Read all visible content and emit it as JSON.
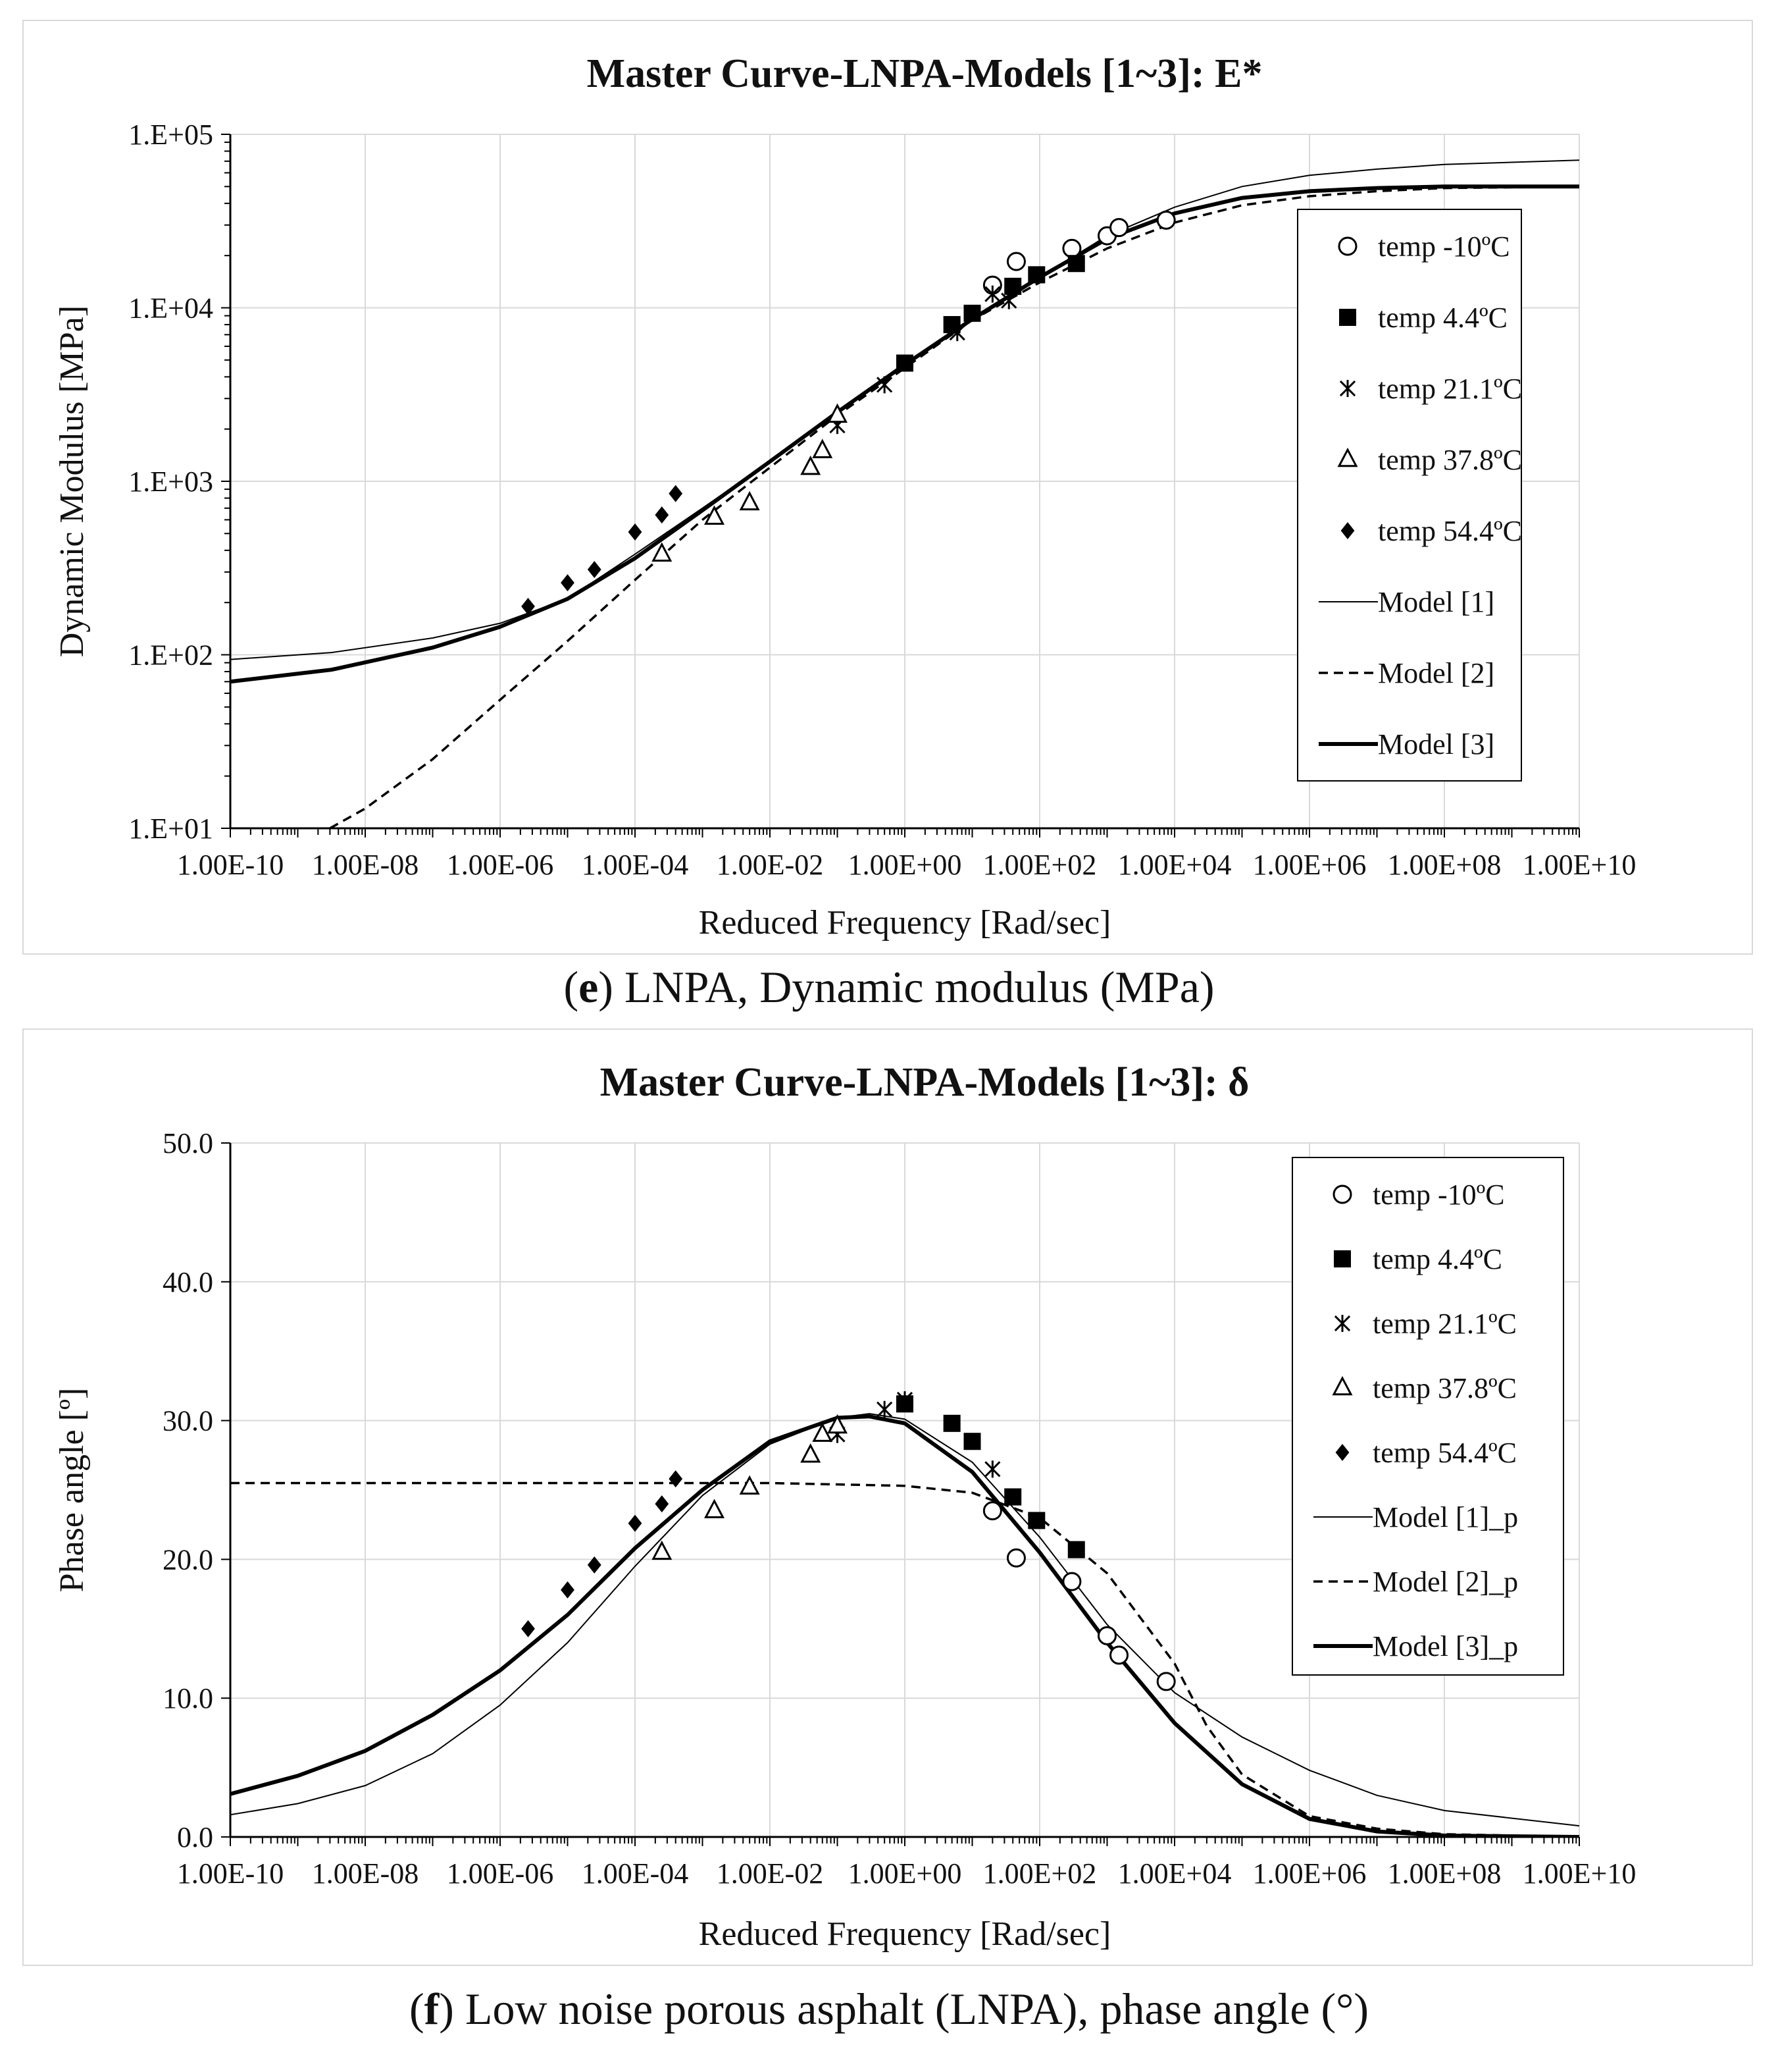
{
  "chart_data": [
    {
      "type": "scatter",
      "title": "Master Curve-LNPA-Models [1~3]: E*",
      "xlabel": "Reduced Frequency [Rad/sec]",
      "ylabel": "Dynamic Modulus [MPa]",
      "xscale": "log",
      "yscale": "log",
      "xlim": [
        1e-10,
        10000000000.0
      ],
      "ylim": [
        10,
        100000
      ],
      "x_ticks": [
        1e-10,
        1e-08,
        1e-06,
        0.0001,
        0.01,
        1,
        100.0,
        10000.0,
        1000000.0,
        100000000.0,
        10000000000.0
      ],
      "x_tick_labels": [
        "1.00E-10",
        "1.00E-08",
        "1.00E-06",
        "1.00E-04",
        "1.00E-02",
        "1.00E+00",
        "1.00E+02",
        "1.00E+04",
        "1.00E+06",
        "1.00E+08",
        "1.00E+10"
      ],
      "y_ticks": [
        10,
        100,
        1000,
        10000,
        100000
      ],
      "y_tick_labels": [
        "1.E+01",
        "1.E+02",
        "1.E+03",
        "1.E+04",
        "1.E+05"
      ],
      "grid": true,
      "legend_position": "right",
      "series": [
        {
          "name": "temp -10ºC",
          "marker": "circle-open",
          "x": [
            20,
            45,
            300,
            1000,
            1500,
            7500
          ],
          "y": [
            13500,
            18500,
            22000,
            26000,
            29000,
            32000
          ]
        },
        {
          "name": "temp 4.4ºC",
          "marker": "square-filled",
          "x": [
            1,
            5,
            10,
            40,
            90,
            350
          ],
          "y": [
            4800,
            8000,
            9300,
            13300,
            15500,
            18000
          ]
        },
        {
          "name": "temp 21.1ºC",
          "marker": "asterisk",
          "x": [
            0.1,
            0.5,
            6,
            20,
            35
          ],
          "y": [
            2100,
            3600,
            7200,
            12000,
            11000
          ]
        },
        {
          "name": "temp 37.8ºC",
          "marker": "triangle-open",
          "x": [
            0.00025,
            0.0015,
            0.005,
            0.04,
            0.06,
            0.1
          ],
          "y": [
            380,
            620,
            750,
            1200,
            1500,
            2400
          ]
        },
        {
          "name": "temp 54.4ºC",
          "marker": "diamond-filled",
          "x": [
            2.6e-06,
            1e-05,
            2.5e-05,
            0.0001,
            0.00025,
            0.0004
          ],
          "y": [
            190,
            260,
            310,
            510,
            640,
            850
          ]
        },
        {
          "name": "Model [1]",
          "style": "thin-solid",
          "line": true,
          "x": [
            1e-10,
            3.16e-09,
            1e-07,
            1e-06,
            1e-05,
            0.0001,
            0.001,
            0.01,
            0.1,
            1,
            10,
            100,
            1000,
            10000,
            100000,
            1000000,
            10000000,
            100000000,
            10000000000.0
          ],
          "y": [
            94,
            103,
            125,
            152,
            210,
            380,
            700,
            1300,
            2500,
            4700,
            8700,
            15000,
            26000,
            38000,
            50000,
            58000,
            63000,
            67000,
            71000
          ]
        },
        {
          "name": "Model [2]",
          "style": "dashed",
          "line": true,
          "x": [
            3e-09,
            1e-08,
            1e-07,
            1e-06,
            1e-05,
            0.0001,
            0.001,
            0.01,
            0.1,
            1,
            10,
            100,
            1000,
            10000,
            100000,
            1000000,
            10000000,
            100000000,
            10000000000.0
          ],
          "y": [
            10,
            13,
            25,
            55,
            120,
            270,
            600,
            1200,
            2400,
            4500,
            8500,
            14000,
            22000,
            31000,
            39000,
            44000,
            47000,
            49000,
            50000
          ]
        },
        {
          "name": "Model [3]",
          "style": "thick-solid",
          "line": true,
          "x": [
            1e-10,
            3.16e-09,
            1e-07,
            1e-06,
            1e-05,
            0.0001,
            0.001,
            0.01,
            0.1,
            1,
            10,
            100,
            1000,
            10000,
            100000,
            1000000,
            10000000,
            100000000,
            10000000000.0
          ],
          "y": [
            70,
            82,
            110,
            145,
            210,
            360,
            680,
            1300,
            2500,
            4700,
            8600,
            15000,
            25000,
            35000,
            43000,
            47000,
            49000,
            50000,
            50000
          ]
        }
      ]
    },
    {
      "type": "scatter",
      "title": "Master Curve-LNPA-Models [1~3]: δ",
      "xlabel": "Reduced Frequency [Rad/sec]",
      "ylabel": "Phase angle [º]",
      "xscale": "log",
      "yscale": "linear",
      "xlim": [
        1e-10,
        10000000000.0
      ],
      "ylim": [
        0,
        50
      ],
      "x_ticks": [
        1e-10,
        1e-08,
        1e-06,
        0.0001,
        0.01,
        1,
        100.0,
        10000.0,
        1000000.0,
        100000000.0,
        10000000000.0
      ],
      "x_tick_labels": [
        "1.00E-10",
        "1.00E-08",
        "1.00E-06",
        "1.00E-04",
        "1.00E-02",
        "1.00E+00",
        "1.00E+02",
        "1.00E+04",
        "1.00E+06",
        "1.00E+08",
        "1.00E+10"
      ],
      "y_ticks": [
        0,
        10,
        20,
        30,
        40,
        50
      ],
      "y_tick_labels": [
        "0.0",
        "10.0",
        "20.0",
        "30.0",
        "40.0",
        "50.0"
      ],
      "grid": true,
      "legend_position": "right",
      "series": [
        {
          "name": "temp -10ºC",
          "marker": "circle-open",
          "x": [
            20,
            45,
            300,
            1000,
            1500,
            7500
          ],
          "y": [
            23.5,
            20.1,
            18.4,
            14.5,
            13.1,
            11.2
          ]
        },
        {
          "name": "temp 4.4ºC",
          "marker": "square-filled",
          "x": [
            1,
            5,
            10,
            40,
            90,
            350
          ],
          "y": [
            31.2,
            29.8,
            28.5,
            24.5,
            22.8,
            20.7
          ]
        },
        {
          "name": "temp 21.1ºC",
          "marker": "asterisk",
          "x": [
            0.1,
            0.5,
            1,
            20
          ],
          "y": [
            29.0,
            30.8,
            31.5,
            26.5
          ]
        },
        {
          "name": "temp 37.8ºC",
          "marker": "triangle-open",
          "x": [
            0.00025,
            0.0015,
            0.005,
            0.04,
            0.06,
            0.1
          ],
          "y": [
            20.5,
            23.5,
            25.2,
            27.5,
            29.0,
            29.6
          ]
        },
        {
          "name": "temp 54.4ºC",
          "marker": "diamond-filled",
          "x": [
            2.6e-06,
            1e-05,
            2.5e-05,
            0.0001,
            0.00025,
            0.0004
          ],
          "y": [
            15.0,
            17.8,
            19.6,
            22.6,
            24.0,
            25.8
          ]
        },
        {
          "name": "Model [1]_p",
          "style": "thin-solid",
          "line": true,
          "x": [
            1e-10,
            1e-09,
            1e-08,
            1e-07,
            1e-06,
            1e-05,
            0.0001,
            0.001,
            0.01,
            0.1,
            0.3,
            1,
            10,
            100,
            1000,
            10000,
            100000,
            1000000,
            10000000,
            100000000,
            10000000000.0
          ],
          "y": [
            1.6,
            2.4,
            3.7,
            6.0,
            9.5,
            14.0,
            19.5,
            24.6,
            28.3,
            30.2,
            30.5,
            30.1,
            27.0,
            21.6,
            15.3,
            10.4,
            7.2,
            4.8,
            3.0,
            1.9,
            0.8
          ]
        },
        {
          "name": "Model [2]_p",
          "style": "dashed",
          "line": true,
          "x": [
            1e-10,
            1e-08,
            1e-06,
            0.0001,
            0.01,
            1,
            10,
            100,
            1000,
            10000,
            30000,
            100000,
            1000000,
            10000000,
            100000000,
            10000000000.0
          ],
          "y": [
            25.5,
            25.5,
            25.5,
            25.5,
            25.5,
            25.3,
            24.8,
            23.0,
            19.0,
            12.5,
            8.0,
            4.5,
            1.5,
            0.6,
            0.2,
            0.0
          ]
        },
        {
          "name": "Model [3]_p",
          "style": "thick-solid",
          "line": true,
          "x": [
            1e-10,
            1e-09,
            1e-08,
            1e-07,
            1e-06,
            1e-05,
            0.0001,
            0.001,
            0.01,
            0.1,
            0.3,
            1,
            10,
            100,
            1000,
            10000,
            100000,
            1000000,
            10000000,
            100000000,
            10000000000.0
          ],
          "y": [
            3.1,
            4.4,
            6.2,
            8.8,
            12.0,
            16.0,
            20.8,
            25.0,
            28.5,
            30.2,
            30.3,
            29.8,
            26.3,
            20.5,
            14.0,
            8.2,
            3.8,
            1.3,
            0.4,
            0.1,
            0.0
          ]
        }
      ]
    }
  ],
  "captions": [
    {
      "bold": "e",
      "text": ") LNPA, Dynamic modulus (MPa)"
    },
    {
      "bold": "f",
      "text": ") Low noise porous asphalt (LNPA), phase angle (°)"
    }
  ]
}
